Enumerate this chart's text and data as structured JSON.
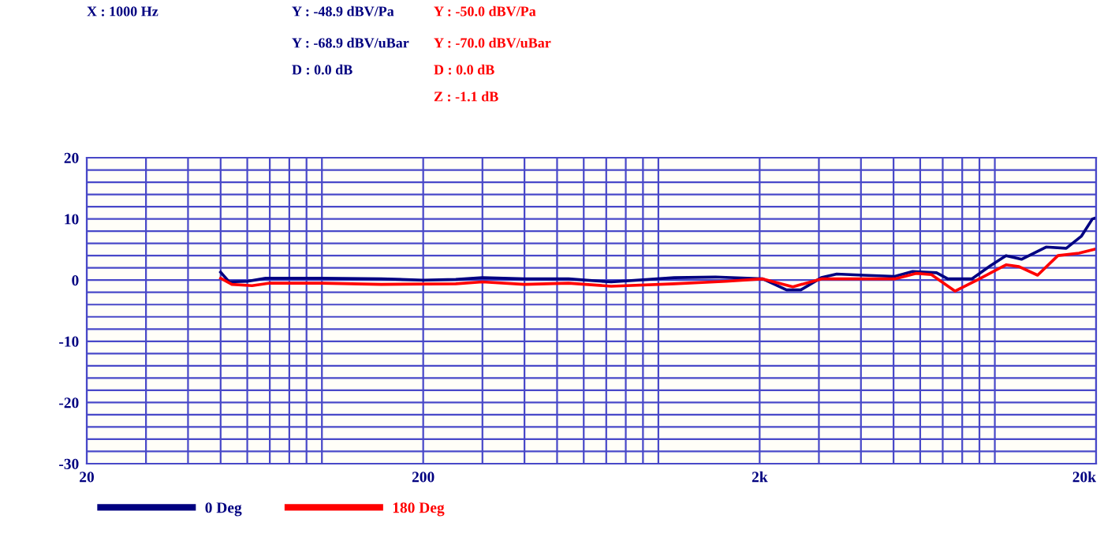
{
  "chart_data": {
    "type": "line",
    "annotations": [
      "X : 1000 Hz",
      "Y : -48.9 dBV/Pa",
      "Y : -68.9 dBV/uBar",
      "D : 0.0 dB",
      "Y : -50.0 dBV/Pa",
      "Y : -70.0 dBV/uBar",
      "D : 0.0 dB",
      "Z : -1.1 dB"
    ],
    "series": [
      {
        "name": "0 Deg",
        "color": "#000080",
        "x": [
          50,
          53,
          60,
          68,
          100,
          150,
          200,
          250,
          300,
          400,
          541,
          724,
          1115,
          1478,
          2043,
          2404,
          2650,
          3050,
          3390,
          4070,
          5040,
          5700,
          6710,
          7250,
          8540,
          9680,
          10800,
          12000,
          14200,
          16300,
          18100,
          19500,
          20000
        ],
        "values": [
          1.3,
          -0.3,
          -0.2,
          0.3,
          0.3,
          0.2,
          0.0,
          0.1,
          0.4,
          0.2,
          0.2,
          -0.3,
          0.4,
          0.5,
          0.2,
          -1.6,
          -1.6,
          0.4,
          1.0,
          0.8,
          0.6,
          1.4,
          1.2,
          0.2,
          0.2,
          2.3,
          4.0,
          3.4,
          5.4,
          5.2,
          7.2,
          10.0,
          10.2
        ]
      },
      {
        "name": "180 Deg",
        "color": "#ff0000",
        "x": [
          50,
          54,
          62,
          70,
          100,
          150,
          250,
          300,
          400,
          541,
          724,
          1115,
          1590,
          2043,
          2510,
          3050,
          4070,
          5040,
          5830,
          6480,
          7620,
          9000,
          10800,
          11800,
          13400,
          15400,
          17800,
          20000
        ],
        "values": [
          0.3,
          -0.7,
          -0.9,
          -0.5,
          -0.5,
          -0.7,
          -0.6,
          -0.3,
          -0.7,
          -0.5,
          -1.0,
          -0.6,
          -0.2,
          0.2,
          -1.1,
          0.2,
          0.2,
          0.2,
          1.1,
          0.9,
          -1.8,
          0.2,
          2.5,
          2.2,
          0.8,
          4.0,
          4.4,
          5.1
        ]
      }
    ],
    "log": "x",
    "xlim": [
      20,
      20000
    ],
    "xticks": [
      20,
      {
        "value": 30,
        "label": null
      },
      {
        "value": 40,
        "label": null
      },
      {
        "value": 50,
        "label": null
      },
      {
        "value": 60,
        "label": null
      },
      {
        "value": 70,
        "label": null
      },
      {
        "value": 80,
        "label": null
      },
      {
        "value": 90,
        "label": null
      },
      {
        "value": 100,
        "label": null
      },
      200,
      {
        "value": 300,
        "label": null
      },
      {
        "value": 400,
        "label": null
      },
      {
        "value": 500,
        "label": null
      },
      {
        "value": 600,
        "label": null
      },
      {
        "value": 700,
        "label": null
      },
      {
        "value": 800,
        "label": null
      },
      {
        "value": 900,
        "label": null
      },
      {
        "value": 1000,
        "label": null
      },
      {
        "value": 2000,
        "label": "2k"
      },
      {
        "value": 3000,
        "label": null
      },
      {
        "value": 4000,
        "label": null
      },
      {
        "value": 5000,
        "label": null
      },
      {
        "value": 6000,
        "label": null
      },
      {
        "value": 7000,
        "label": null
      },
      {
        "value": 8000,
        "label": null
      },
      {
        "value": 9000,
        "label": null
      },
      {
        "value": 10000,
        "label": null
      },
      {
        "value": 20000,
        "label": "20k"
      }
    ],
    "ylim": [
      -30,
      20
    ],
    "yticks": [
      -30,
      {
        "value": -28,
        "label": null
      },
      {
        "value": -26,
        "label": null
      },
      {
        "value": -24,
        "label": null
      },
      {
        "value": -22,
        "label": null
      },
      -20,
      {
        "value": -18,
        "label": null
      },
      {
        "value": -16,
        "label": null
      },
      {
        "value": -14,
        "label": null
      },
      {
        "value": -12,
        "label": null
      },
      -10,
      {
        "value": -8,
        "label": null
      },
      {
        "value": -6,
        "label": null
      },
      {
        "value": -4,
        "label": null
      },
      {
        "value": -2,
        "label": null
      },
      0,
      {
        "value": 2,
        "label": null
      },
      {
        "value": 4,
        "label": null
      },
      {
        "value": 6,
        "label": null
      },
      {
        "value": 8,
        "label": null
      },
      10,
      {
        "value": 12,
        "label": null
      },
      {
        "value": 14,
        "label": null
      },
      {
        "value": 16,
        "label": null
      },
      {
        "value": 18,
        "label": null
      },
      20
    ],
    "grid": true,
    "legend": "bottom",
    "marker": "none",
    "line_style": "solid"
  }
}
